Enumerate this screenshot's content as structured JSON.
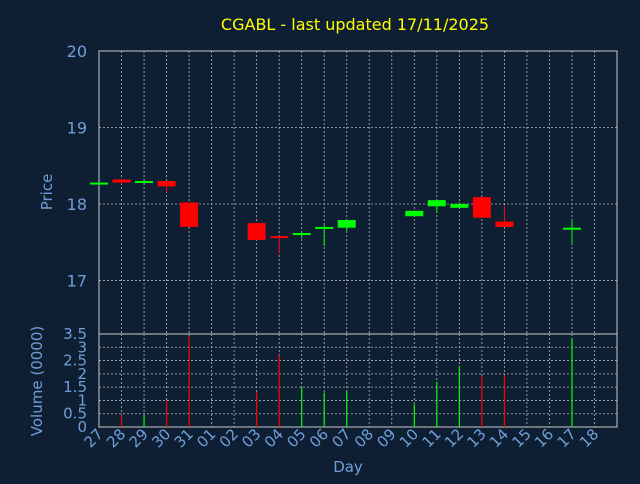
{
  "chart_data": [
    {
      "type": "candlestick",
      "title": "CGABL - last updated 17/11/2025",
      "ylabel": "Price",
      "ylim": [
        16.3,
        20
      ],
      "y_ticks": [
        "20",
        "19",
        "18",
        "17"
      ],
      "y_tick_values": [
        20,
        19,
        18,
        17
      ],
      "grid": true,
      "candles": [
        {
          "day": "27",
          "open": 18.28,
          "close": 18.28,
          "high": 18.28,
          "low": 18.28
        },
        {
          "day": "28",
          "open": 18.32,
          "close": 18.28,
          "high": 18.33,
          "low": 18.26
        },
        {
          "day": "29",
          "open": 18.28,
          "close": 18.3,
          "high": 18.33,
          "low": 18.27
        },
        {
          "day": "30",
          "open": 18.3,
          "close": 18.23,
          "high": 18.3,
          "low": 18.15
        },
        {
          "day": "31",
          "open": 18.02,
          "close": 17.7,
          "high": 18.02,
          "low": 17.7
        },
        {
          "day": "03",
          "open": 17.75,
          "close": 17.53,
          "high": 17.75,
          "low": 17.53
        },
        {
          "day": "04",
          "open": 17.58,
          "close": 17.56,
          "high": 17.58,
          "low": 17.35
        },
        {
          "day": "05",
          "open": 17.6,
          "close": 17.62,
          "high": 17.63,
          "low": 17.55
        },
        {
          "day": "06",
          "open": 17.69,
          "close": 17.7,
          "high": 17.72,
          "low": 17.45
        },
        {
          "day": "07",
          "open": 17.69,
          "close": 17.79,
          "high": 17.79,
          "low": 17.65
        },
        {
          "day": "10",
          "open": 17.84,
          "close": 17.91,
          "high": 17.91,
          "low": 17.84
        },
        {
          "day": "11",
          "open": 17.97,
          "close": 18.05,
          "high": 18.05,
          "low": 17.88
        },
        {
          "day": "12",
          "open": 17.95,
          "close": 18.0,
          "high": 18.02,
          "low": 17.95
        },
        {
          "day": "13",
          "open": 18.09,
          "close": 17.82,
          "high": 18.09,
          "low": 17.82
        },
        {
          "day": "14",
          "open": 17.77,
          "close": 17.7,
          "high": 17.98,
          "low": 17.7
        },
        {
          "day": "17",
          "open": 17.67,
          "close": 17.69,
          "high": 17.78,
          "low": 17.48
        }
      ],
      "colors": {
        "up": "#00ff00",
        "down": "#ff0000"
      }
    },
    {
      "type": "bar",
      "ylabel": "Volume (0000)",
      "xlabel": "Day",
      "ylim": [
        0,
        3.5
      ],
      "y_ticks": [
        "3.5",
        "3",
        "2.5",
        "2",
        "1.5",
        "1",
        "0.5",
        "0"
      ],
      "y_tick_values": [
        3.5,
        3,
        2.5,
        2,
        1.5,
        1,
        0.5,
        0
      ],
      "categories": [
        "27",
        "28",
        "29",
        "30",
        "31",
        "01",
        "02",
        "03",
        "04",
        "05",
        "06",
        "07",
        "08",
        "09",
        "10",
        "11",
        "12",
        "13",
        "14",
        "15",
        "16",
        "17",
        "18"
      ],
      "bars": [
        {
          "day": "27",
          "value": 0,
          "color": "#ff0000"
        },
        {
          "day": "28",
          "value": 0.45,
          "color": "#ff0000"
        },
        {
          "day": "29",
          "value": 0.45,
          "color": "#00ff00"
        },
        {
          "day": "30",
          "value": 1.0,
          "color": "#ff0000"
        },
        {
          "day": "31",
          "value": 3.4,
          "color": "#ff0000"
        },
        {
          "day": "03",
          "value": 1.3,
          "color": "#ff0000"
        },
        {
          "day": "04",
          "value": 2.7,
          "color": "#ff0000"
        },
        {
          "day": "05",
          "value": 1.5,
          "color": "#00ff00"
        },
        {
          "day": "06",
          "value": 1.3,
          "color": "#00ff00"
        },
        {
          "day": "07",
          "value": 1.35,
          "color": "#00ff00"
        },
        {
          "day": "10",
          "value": 0.85,
          "color": "#00ff00"
        },
        {
          "day": "11",
          "value": 1.7,
          "color": "#00ff00"
        },
        {
          "day": "12",
          "value": 2.3,
          "color": "#00ff00"
        },
        {
          "day": "13",
          "value": 1.9,
          "color": "#ff0000"
        },
        {
          "day": "14",
          "value": 1.95,
          "color": "#ff0000"
        },
        {
          "day": "17",
          "value": 3.35,
          "color": "#00ff00"
        }
      ]
    }
  ],
  "colors": {
    "background": "#0f1f33",
    "title": "#ffff00",
    "axis_text": "#6f9fd8",
    "frame": "#c8c8c8",
    "grid": "#b4b4b4"
  }
}
